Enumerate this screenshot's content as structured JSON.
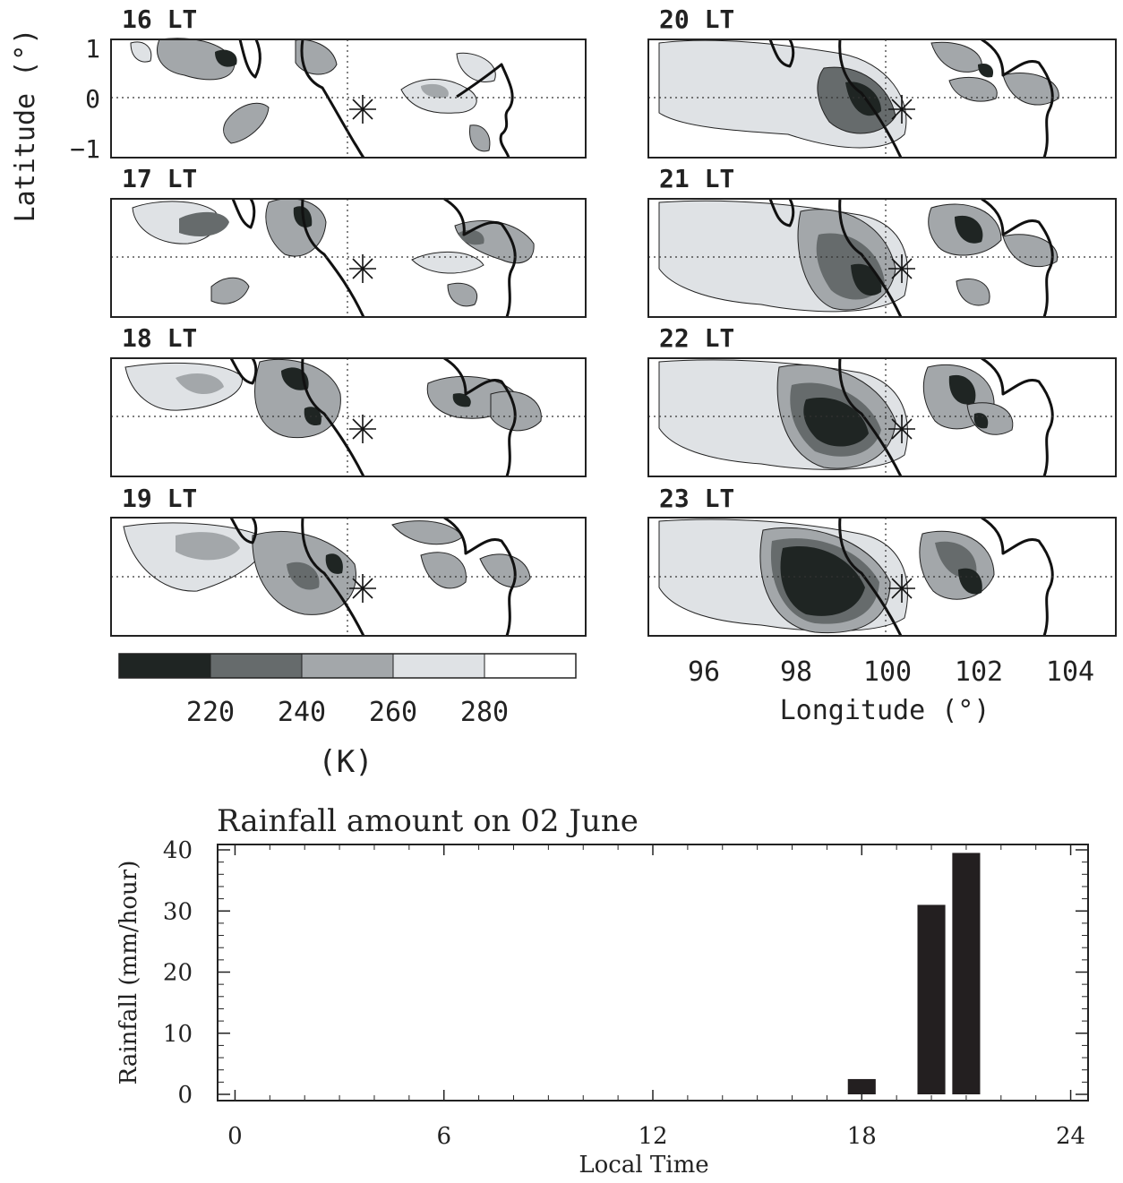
{
  "map_panel": {
    "panels": [
      {
        "label": "16 LT",
        "col": 0,
        "row": 0
      },
      {
        "label": "17 LT",
        "col": 0,
        "row": 1
      },
      {
        "label": "18 LT",
        "col": 0,
        "row": 2
      },
      {
        "label": "19 LT",
        "col": 0,
        "row": 3
      },
      {
        "label": "20 LT",
        "col": 1,
        "row": 0
      },
      {
        "label": "21 LT",
        "col": 1,
        "row": 1
      },
      {
        "label": "22 LT",
        "col": 1,
        "row": 2
      },
      {
        "label": "23 LT",
        "col": 1,
        "row": 3
      }
    ],
    "ylabel": "Latitude (°)",
    "lat_ticks": [
      "1",
      "0",
      "−1"
    ],
    "xlabel": "Longitude (°)",
    "lon_ticks": [
      "96",
      "98",
      "100",
      "102",
      "104"
    ],
    "colorbar": {
      "ticks": [
        "220",
        "240",
        "260",
        "280"
      ],
      "unit": "(K)",
      "colors": [
        "#1f2523",
        "#666b6c",
        "#a3a7aa",
        "#dfe2e5",
        "#ffffff"
      ]
    }
  },
  "chart_data": {
    "type": "bar",
    "title": "Rainfall amount on 02 June",
    "xlabel": "Local Time",
    "ylabel": "Rainfall (mm/hour)",
    "x_ticks": [
      0,
      6,
      12,
      18,
      24
    ],
    "y_ticks": [
      0,
      10,
      20,
      30,
      40
    ],
    "xlim": [
      -0.5,
      24.5
    ],
    "ylim": [
      0,
      40
    ],
    "x": [
      18,
      20,
      21
    ],
    "values": [
      2.5,
      31,
      39.5
    ],
    "bar_color": "#231f20"
  }
}
